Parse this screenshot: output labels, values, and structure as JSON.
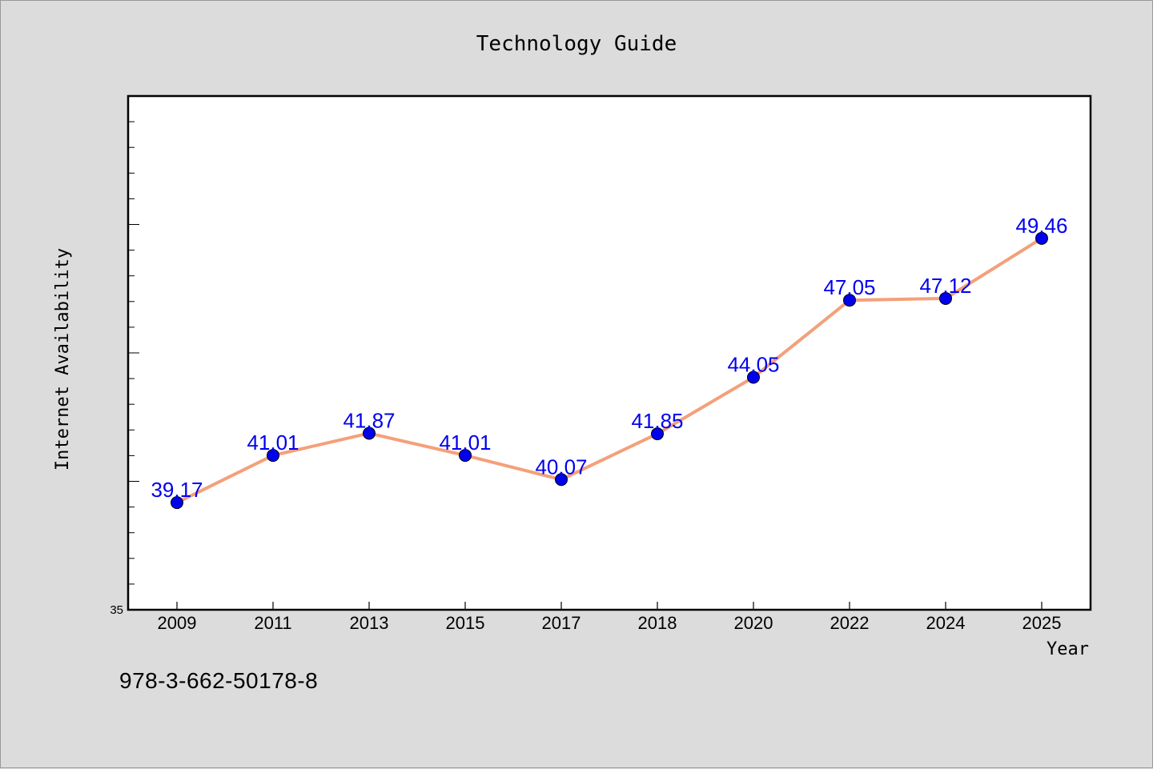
{
  "chart_data": {
    "type": "line",
    "title": "Technology Guide",
    "xlabel": "Year",
    "ylabel": "Internet Availability",
    "categories": [
      "2009",
      "2011",
      "2013",
      "2015",
      "2017",
      "2018",
      "2020",
      "2022",
      "2024",
      "2025"
    ],
    "series": [
      {
        "values": [
          39.17,
          41.01,
          41.87,
          41.01,
          40.07,
          41.85,
          44.05,
          47.05,
          47.12,
          49.46
        ],
        "data_labels": [
          "39.17",
          "41.01",
          "41.87",
          "41.01",
          "40.07",
          "41.85",
          "44.05",
          "47.05",
          "47.12",
          "49.46"
        ],
        "line_color": "#f4a07a",
        "marker_color": "#0000ee",
        "label_color": "#0000ee"
      }
    ],
    "ylim": [
      35,
      55
    ],
    "y_tick_labels": [
      {
        "value": 35,
        "label": "35"
      }
    ],
    "grid": false,
    "legend": "none"
  },
  "footer_text": "978-3-662-50178-8",
  "colors": {
    "background": "#dcdcdc",
    "plot_background": "#ffffff",
    "axis": "#000000",
    "text": "#000000"
  }
}
